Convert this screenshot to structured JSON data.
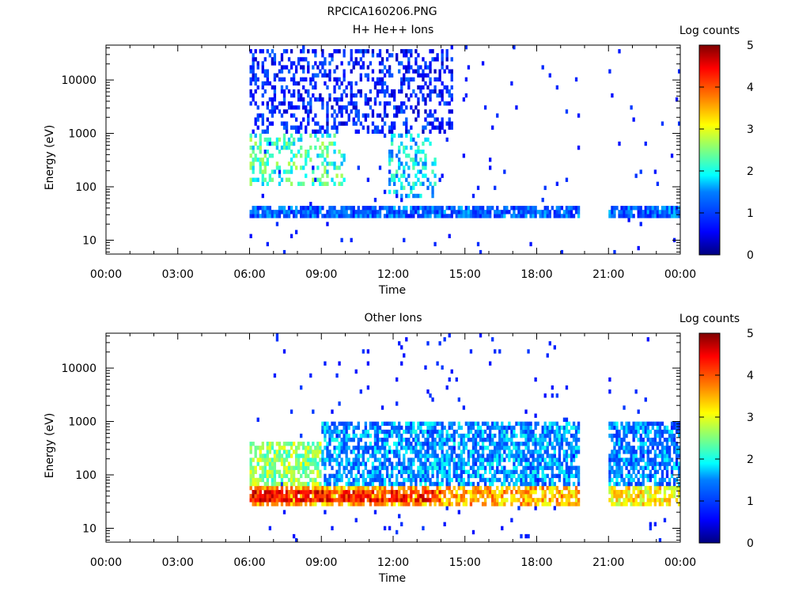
{
  "figure_title": "RPCICA160206.PNG",
  "colorbar": {
    "label": "Log counts",
    "ticks": [
      "0",
      "1",
      "2",
      "3",
      "4",
      "5"
    ],
    "range": [
      0,
      5
    ],
    "colormap": [
      "#00007f",
      "#0000ff",
      "#007fff",
      "#00ffff",
      "#7fff7f",
      "#ffff00",
      "#ff7f00",
      "#ff0000",
      "#7f0000"
    ]
  },
  "chart_data": [
    {
      "type": "heatmap",
      "title": "H+ He++ Ions",
      "xlabel": "Time",
      "ylabel": "Energy (eV)",
      "x_ticks": [
        "00:00",
        "03:00",
        "06:00",
        "09:00",
        "12:00",
        "15:00",
        "18:00",
        "21:00",
        "00:00"
      ],
      "xlim_hours": [
        0,
        24
      ],
      "y_ticks": [
        "10",
        "100",
        "1000",
        "10000"
      ],
      "y_scale": "log",
      "ylim": [
        5.5,
        45000
      ],
      "data_gaps_hours": [
        [
          0,
          6
        ],
        [
          19.8,
          21.0
        ]
      ],
      "features": [
        {
          "name": "low-energy band",
          "t_start": 6.0,
          "t_end": 19.8,
          "energy": 35,
          "log_counts": 1.2
        },
        {
          "name": "low-energy band",
          "t_start": 21.0,
          "t_end": 24.0,
          "energy": 35,
          "log_counts": 1.2
        },
        {
          "name": "enhanced ion population",
          "t_start": 6.0,
          "t_end": 10.0,
          "energy_low": 100,
          "energy_high": 1000,
          "log_counts": 2.2
        },
        {
          "name": "enhanced ion population",
          "t_start": 11.8,
          "t_end": 13.8,
          "energy_low": 60,
          "energy_high": 1000,
          "log_counts": 1.8
        },
        {
          "name": "sparse high-energy counts",
          "t_start": 6.0,
          "t_end": 14.5,
          "energy_low": 1000,
          "energy_high": 40000,
          "log_counts": 0.8
        }
      ]
    },
    {
      "type": "heatmap",
      "title": "Other Ions",
      "xlabel": "Time",
      "ylabel": "Energy (eV)",
      "x_ticks": [
        "00:00",
        "03:00",
        "06:00",
        "09:00",
        "12:00",
        "15:00",
        "18:00",
        "21:00",
        "00:00"
      ],
      "xlim_hours": [
        0,
        24
      ],
      "y_ticks": [
        "10",
        "100",
        "1000",
        "10000"
      ],
      "y_scale": "log",
      "ylim": [
        5.5,
        45000
      ],
      "data_gaps_hours": [
        [
          0,
          6
        ],
        [
          19.8,
          21.0
        ]
      ],
      "features": [
        {
          "name": "dense low-energy band",
          "t_start": 6.0,
          "t_end": 19.8,
          "energy_low": 25,
          "energy_high": 60,
          "log_counts": 3.5
        },
        {
          "name": "dense low-energy band",
          "t_start": 21.0,
          "t_end": 24.0,
          "energy_low": 25,
          "energy_high": 60,
          "log_counts": 3.2
        },
        {
          "name": "intense bursts",
          "t_start": 6.0,
          "t_end": 14.0,
          "energy": 40,
          "log_counts": 4.3
        },
        {
          "name": "broad population",
          "t_start": 6.0,
          "t_end": 9.0,
          "energy_low": 60,
          "energy_high": 400,
          "log_counts": 2.6
        },
        {
          "name": "broad population",
          "t_start": 9.0,
          "t_end": 19.8,
          "energy_low": 60,
          "energy_high": 1000,
          "log_counts": 1.5
        },
        {
          "name": "broad population",
          "t_start": 21.0,
          "t_end": 24.0,
          "energy_low": 60,
          "energy_high": 1000,
          "log_counts": 1.4
        }
      ]
    }
  ]
}
